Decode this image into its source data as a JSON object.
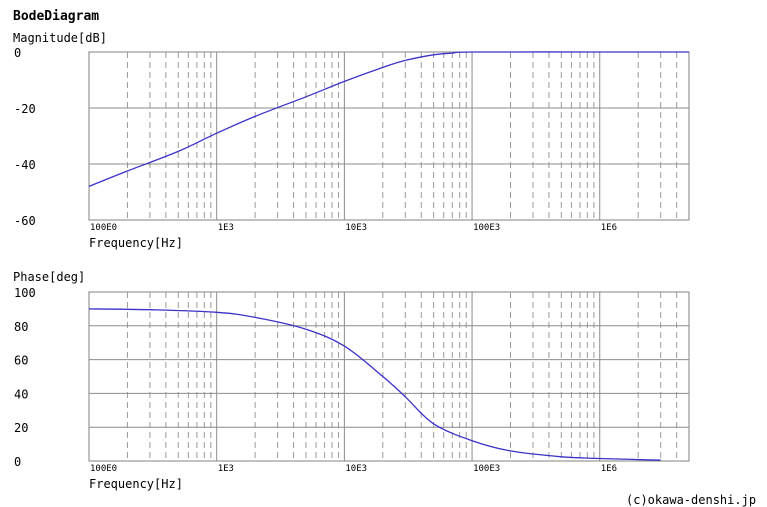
{
  "header": {
    "title": "BodeDiagram"
  },
  "footer": {
    "copyright": "(c)okawa-denshi.jp"
  },
  "chart_data": [
    {
      "type": "line",
      "ylabel": "Magnitude[dB]",
      "xlabel": "Frequency[Hz]",
      "xscale": "log",
      "xlim": [
        100,
        5000000
      ],
      "ylim": [
        -60,
        0
      ],
      "yticks": [
        0,
        -20,
        -40,
        -60
      ],
      "ytick_labels": [
        "0",
        "-20",
        "-40",
        "-60"
      ],
      "xticks": [
        100,
        1000,
        10000,
        100000,
        1000000
      ],
      "xtick_labels": [
        "100E0",
        "1E3",
        "10E3",
        "100E3",
        "1E6"
      ],
      "grid": true,
      "line_color": "#3b32c8",
      "series": [
        {
          "x": [
            100,
            200,
            500,
            1000,
            2000,
            5000,
            10000,
            20000,
            30000,
            50000,
            70000,
            100000,
            1000000,
            5000000
          ],
          "values": [
            -48,
            -42.5,
            -35.5,
            -29,
            -23,
            -16,
            -10.5,
            -5.5,
            -3,
            -1,
            -0.4,
            0,
            0,
            0
          ]
        }
      ]
    },
    {
      "type": "line",
      "ylabel": "Phase[deg]",
      "xlabel": "Frequency[Hz]",
      "xscale": "log",
      "xlim": [
        100,
        5000000
      ],
      "ylim": [
        0,
        100
      ],
      "yticks": [
        100,
        80,
        60,
        40,
        20,
        0
      ],
      "ytick_labels": [
        "100",
        "80",
        "60",
        "40",
        "20",
        "0"
      ],
      "xticks": [
        100,
        1000,
        10000,
        100000,
        1000000
      ],
      "xtick_labels": [
        "100E0",
        "1E3",
        "10E3",
        "100E3",
        "1E6"
      ],
      "grid": true,
      "line_color": "#3b32c8",
      "series": [
        {
          "x": [
            100,
            300,
            1000,
            2000,
            5000,
            10000,
            20000,
            30000,
            50000,
            100000,
            200000,
            500000,
            1000000,
            3000000
          ],
          "values": [
            90,
            89.5,
            88,
            85,
            78,
            68,
            50,
            38,
            22,
            12,
            6,
            2.5,
            1.5,
            0.5
          ]
        }
      ]
    }
  ]
}
